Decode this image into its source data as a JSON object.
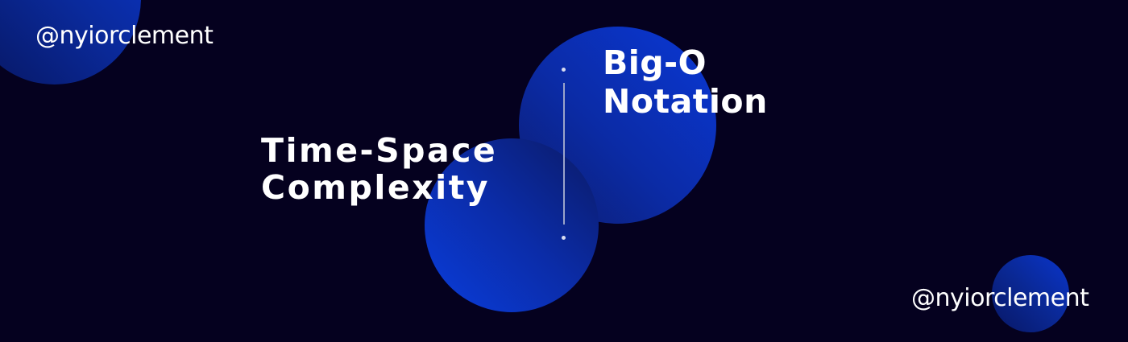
{
  "handles": {
    "top": "@nyiorclement",
    "bottom": "@nyiorclement"
  },
  "title_left": {
    "line1": "Time-Space",
    "line2": "Complexity"
  },
  "title_right": {
    "line1": "Big-O",
    "line2": "Notation"
  },
  "colors": {
    "background": "#05011f",
    "accent_blue": "#0a38d6",
    "text": "#ffffff"
  }
}
